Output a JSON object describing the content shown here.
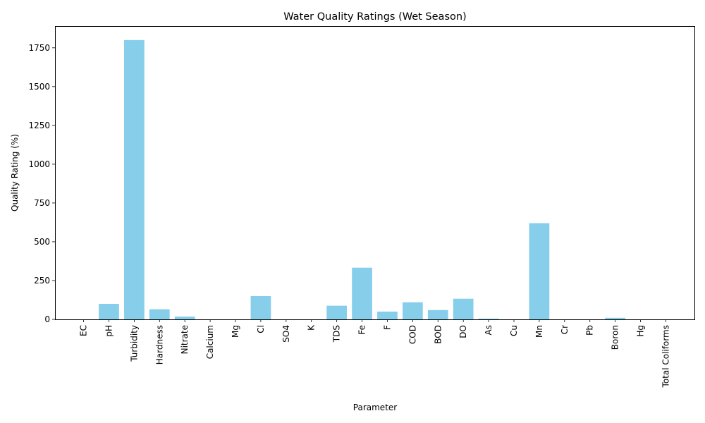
{
  "chart_data": {
    "type": "bar",
    "title": "Water Quality Ratings (Wet Season)",
    "xlabel": "Parameter",
    "ylabel": "Quality Rating (%)",
    "categories": [
      "EC",
      "pH",
      "Turbidity",
      "Hardness",
      "Nitrate",
      "Calcium",
      "Mg",
      "Cl",
      "SO4",
      "K",
      "TDS",
      "Fe",
      "F",
      "COD",
      "BOD",
      "DO",
      "As",
      "Cu",
      "Mn",
      "Cr",
      "Pb",
      "Boron",
      "Hg",
      "Total Coliforms"
    ],
    "values": [
      0,
      100,
      1800,
      65,
      18,
      0,
      0,
      150,
      0,
      0,
      88,
      333,
      50,
      110,
      60,
      133,
      5,
      0,
      620,
      0,
      0,
      10,
      0,
      0
    ],
    "ylim": [
      0,
      1890
    ],
    "yticks": [
      0,
      250,
      500,
      750,
      1000,
      1250,
      1500,
      1750
    ],
    "grid": false,
    "legend": "none",
    "bar_color": "#87ceeb"
  }
}
